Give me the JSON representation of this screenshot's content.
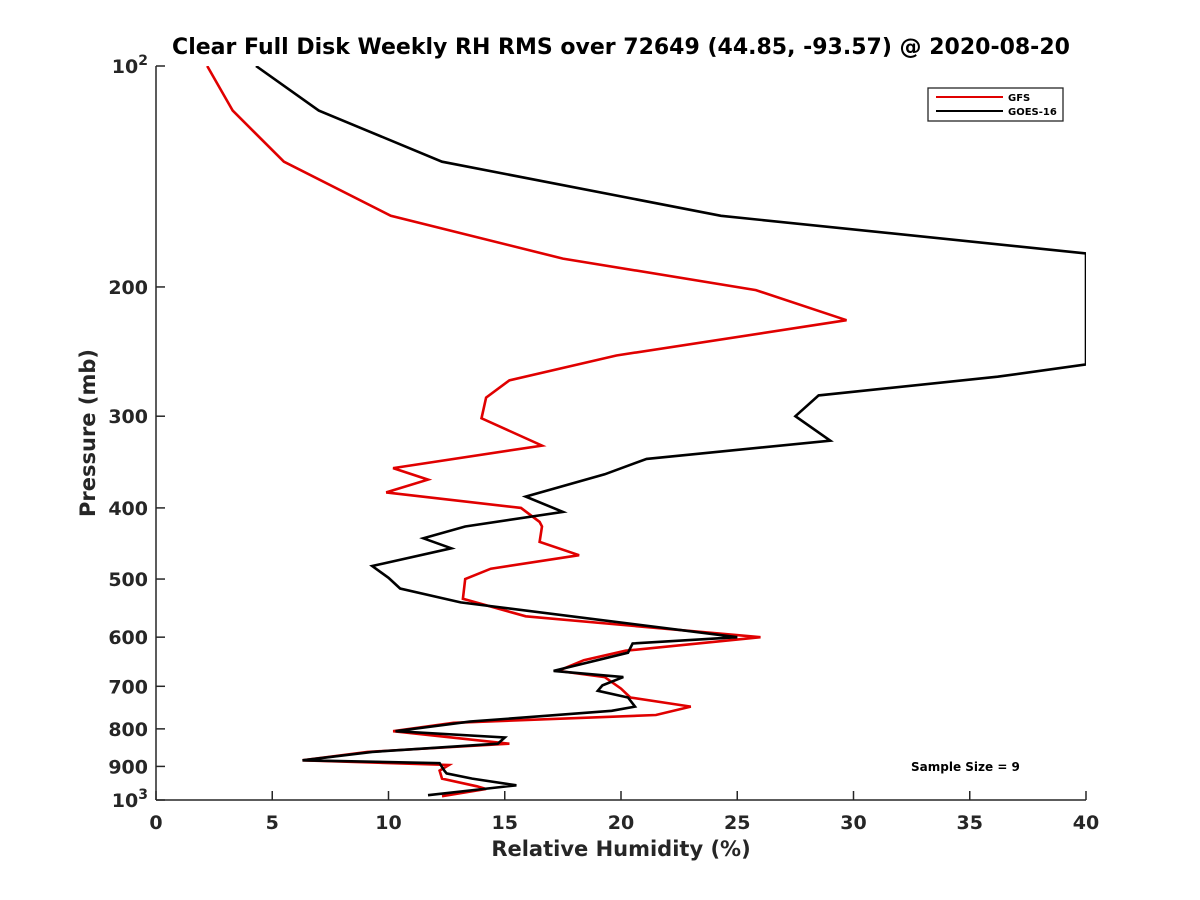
{
  "chart_data": {
    "type": "line",
    "title": "Clear Full Disk Weekly RH RMS over 72649 (44.85, -93.57) @ 2020-08-20",
    "xlabel": "Relative Humidity (%)",
    "ylabel": "Pressure (mb)",
    "xlim": [
      0,
      40
    ],
    "ylim": [
      100,
      1000
    ],
    "yscale": "log",
    "y_reversed": true,
    "grid": false,
    "legend_position": "top-right",
    "x_ticks": [
      0,
      5,
      10,
      15,
      20,
      25,
      30,
      35,
      40
    ],
    "x_tick_labels": [
      "0",
      "5",
      "10",
      "15",
      "20",
      "25",
      "30",
      "35",
      "40"
    ],
    "y_ticks": [
      100,
      200,
      300,
      400,
      500,
      600,
      700,
      800,
      900,
      1000
    ],
    "y_tick_labels": [
      {
        "base": "10",
        "exp": "2"
      },
      {
        "base": "200",
        "exp": ""
      },
      {
        "base": "300",
        "exp": ""
      },
      {
        "base": "400",
        "exp": ""
      },
      {
        "base": "500",
        "exp": ""
      },
      {
        "base": "600",
        "exp": ""
      },
      {
        "base": "700",
        "exp": ""
      },
      {
        "base": "800",
        "exp": ""
      },
      {
        "base": "900",
        "exp": ""
      },
      {
        "base": "10",
        "exp": "3"
      }
    ],
    "annotation": "Sample Size = 9",
    "series": [
      {
        "name": "GFS",
        "color": "#e00000",
        "points": [
          [
            2.2,
            100
          ],
          [
            3.3,
            115
          ],
          [
            5.5,
            135
          ],
          [
            10.1,
            160
          ],
          [
            17.5,
            183
          ],
          [
            25.8,
            202
          ],
          [
            29.7,
            222
          ],
          [
            19.8,
            248
          ],
          [
            15.2,
            268
          ],
          [
            14.2,
            283
          ],
          [
            14.0,
            302
          ],
          [
            16.6,
            329
          ],
          [
            10.2,
            353
          ],
          [
            11.7,
            366
          ],
          [
            9.9,
            381
          ],
          [
            15.7,
            400
          ],
          [
            16.5,
            418
          ],
          [
            16.6,
            424
          ],
          [
            16.5,
            445
          ],
          [
            18.2,
            464
          ],
          [
            14.4,
            484
          ],
          [
            13.3,
            500
          ],
          [
            13.2,
            532
          ],
          [
            15.9,
            562
          ],
          [
            26.0,
            600
          ],
          [
            20.2,
            626
          ],
          [
            18.4,
            645
          ],
          [
            17.3,
            667
          ],
          [
            19.3,
            680
          ],
          [
            20.0,
            705
          ],
          [
            20.4,
            725
          ],
          [
            23.0,
            746
          ],
          [
            21.5,
            766
          ],
          [
            12.8,
            785
          ],
          [
            10.2,
            806
          ],
          [
            15.2,
            838
          ],
          [
            9.1,
            860
          ],
          [
            6.3,
            883
          ],
          [
            12.6,
            896
          ],
          [
            12.2,
            912
          ],
          [
            12.3,
            935
          ],
          [
            13.8,
            958
          ],
          [
            14.2,
            966
          ],
          [
            12.3,
            988
          ]
        ]
      },
      {
        "name": "GOES-16",
        "color": "#000000",
        "points": [
          [
            4.3,
            100
          ],
          [
            7.0,
            115
          ],
          [
            12.3,
            135
          ],
          [
            24.3,
            160
          ],
          [
            40.0,
            180
          ],
          [
            40.0,
            255
          ],
          [
            36.2,
            265
          ],
          [
            28.5,
            281
          ],
          [
            27.5,
            300
          ],
          [
            29.0,
            324
          ],
          [
            21.1,
            343
          ],
          [
            19.3,
            360
          ],
          [
            15.9,
            386
          ],
          [
            17.5,
            405
          ],
          [
            13.3,
            424
          ],
          [
            11.5,
            440
          ],
          [
            12.7,
            454
          ],
          [
            9.3,
            480
          ],
          [
            10.0,
            498
          ],
          [
            10.5,
            515
          ],
          [
            13.1,
            538
          ],
          [
            25.0,
            600
          ],
          [
            20.5,
            612
          ],
          [
            20.3,
            630
          ],
          [
            17.1,
            667
          ],
          [
            20.1,
            680
          ],
          [
            19.2,
            698
          ],
          [
            19.0,
            710
          ],
          [
            20.3,
            725
          ],
          [
            20.6,
            746
          ],
          [
            19.6,
            756
          ],
          [
            13.5,
            782
          ],
          [
            10.3,
            806
          ],
          [
            15.0,
            822
          ],
          [
            14.7,
            838
          ],
          [
            9.3,
            860
          ],
          [
            6.3,
            883
          ],
          [
            12.2,
            891
          ],
          [
            12.4,
            912
          ],
          [
            12.5,
            920
          ],
          [
            13.6,
            935
          ],
          [
            15.5,
            955
          ],
          [
            11.7,
            985
          ]
        ]
      }
    ]
  }
}
